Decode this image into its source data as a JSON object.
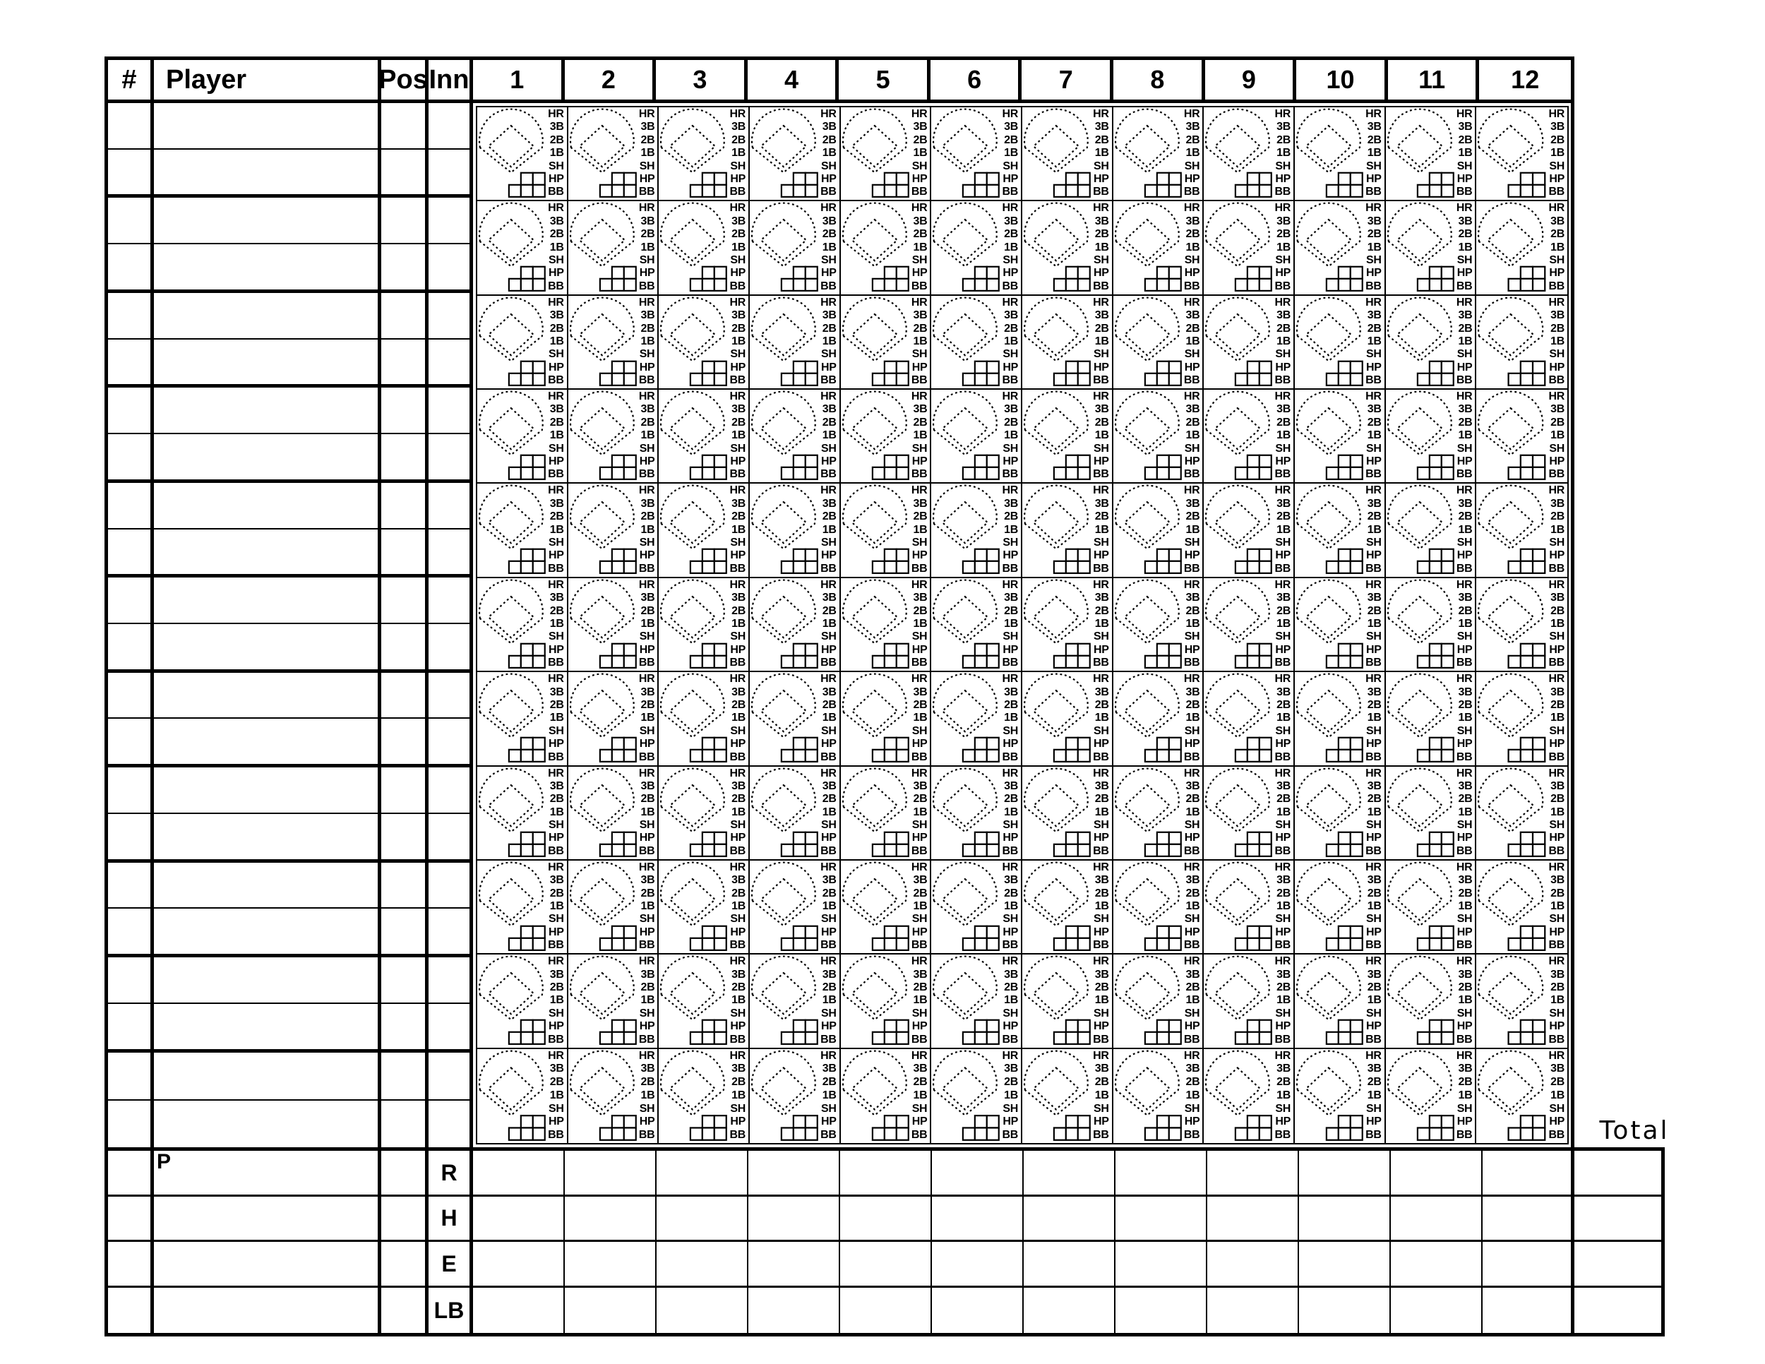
{
  "header": {
    "number": "#",
    "player": "Player",
    "position": "Pos",
    "inning": "Inn",
    "innings": [
      "1",
      "2",
      "3",
      "4",
      "5",
      "6",
      "7",
      "8",
      "9",
      "10",
      "11",
      "12"
    ],
    "total": "Total"
  },
  "lineup": {
    "player_rows": 11,
    "lines_per_row": 2
  },
  "scoring_cell": {
    "play_labels": [
      "HR",
      "3B",
      "2B",
      "1B",
      "SH",
      "HP",
      "BB"
    ],
    "pitch_boxes": {
      "top_row": 2,
      "bottom_row": 3
    }
  },
  "summary": {
    "pitcher": "P",
    "rows": [
      "R",
      "H",
      "E",
      "LB"
    ]
  },
  "colors": {
    "ink": "#000000",
    "paper": "#ffffff"
  },
  "icons": {
    "diamond-icon": "dashed baseball field outline (outfield arc with foul lines) containing dashed infield diamond",
    "pitch-count-boxes": "five small squares: 2 on top row, 3 on bottom row"
  }
}
